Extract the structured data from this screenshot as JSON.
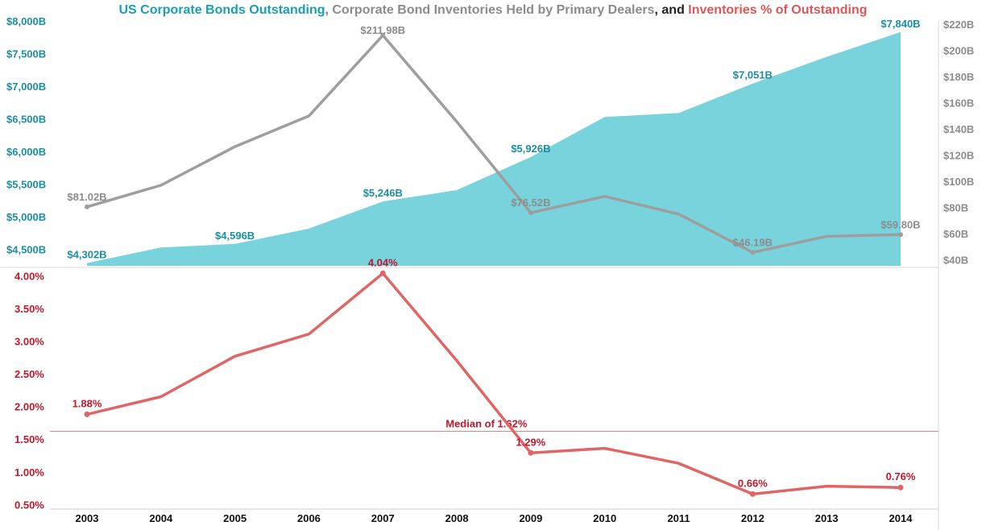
{
  "title": {
    "part1": "US Corporate Bonds Outstanding",
    "sep1": ", ",
    "part2": "Corporate Bond Inventories Held by Primary Dealers",
    "sep2": ", and ",
    "part3": "Inventories % of Outstanding"
  },
  "colors": {
    "outstanding": "#1a8fa3",
    "outstanding_fill": "#78d3dc",
    "inventories": "#9e9e9e",
    "pct": "#e06666",
    "pct_text": "#c0182b",
    "median": "#f08080"
  },
  "chart_data": [
    {
      "type": "area",
      "x": [
        "2003",
        "2004",
        "2005",
        "2006",
        "2007",
        "2008",
        "2009",
        "2010",
        "2011",
        "2012",
        "2013",
        "2014"
      ],
      "series": [
        {
          "name": "US Corporate Bonds Outstanding",
          "axis": "left",
          "values": [
            4302,
            4540,
            4596,
            4830,
            5246,
            5420,
            5926,
            6540,
            6600,
            7051,
            7460,
            7840
          ]
        },
        {
          "name": "Corporate Bond Inventories Held by Primary Dealers",
          "type": "line",
          "axis": "right",
          "values": [
            81.02,
            97.5,
            127,
            150.5,
            211.98,
            146,
            76.52,
            89,
            75.5,
            46.19,
            58.5,
            59.8
          ]
        }
      ],
      "left_ticks": [
        "$4,500B",
        "$5,000B",
        "$5,500B",
        "$6,000B",
        "$6,500B",
        "$7,000B",
        "$7,500B",
        "$8,000B"
      ],
      "left_tick_values": [
        4500,
        5000,
        5500,
        6000,
        6500,
        7000,
        7500,
        8000
      ],
      "right_ticks": [
        "$40B",
        "$60B",
        "$80B",
        "$100B",
        "$120B",
        "$140B",
        "$160B",
        "$180B",
        "$200B",
        "$220B"
      ],
      "right_tick_values": [
        40,
        60,
        80,
        100,
        120,
        140,
        160,
        180,
        200,
        220
      ],
      "left_ylim": [
        4260,
        8010
      ],
      "right_ylim": [
        36,
        223
      ],
      "area_labels": [
        {
          "i": 0,
          "text": "$4,302B"
        },
        {
          "i": 2,
          "text": "$4,596B"
        },
        {
          "i": 4,
          "text": "$5,246B"
        },
        {
          "i": 6,
          "text": "$5,926B"
        },
        {
          "i": 9,
          "text": "$7,051B"
        },
        {
          "i": 11,
          "text": "$7,840B"
        }
      ],
      "line_labels": [
        {
          "i": 0,
          "text": "$81.02B"
        },
        {
          "i": 4,
          "text": "$211.98B"
        },
        {
          "i": 6,
          "text": "$76.52B"
        },
        {
          "i": 9,
          "text": "$46.19B"
        },
        {
          "i": 11,
          "text": "$59.80B"
        }
      ]
    },
    {
      "type": "line",
      "x": [
        "2003",
        "2004",
        "2005",
        "2006",
        "2007",
        "2008",
        "2009",
        "2010",
        "2011",
        "2012",
        "2013",
        "2014"
      ],
      "series": [
        {
          "name": "Inventories % of Outstanding",
          "values": [
            1.88,
            2.15,
            2.77,
            3.11,
            4.04,
            2.7,
            1.29,
            1.36,
            1.13,
            0.66,
            0.78,
            0.76
          ]
        }
      ],
      "y_ticks": [
        "0.50%",
        "1.00%",
        "1.50%",
        "2.00%",
        "2.50%",
        "3.00%",
        "3.50%",
        "4.00%"
      ],
      "y_tick_values": [
        0.5,
        1.0,
        1.5,
        2.0,
        2.5,
        3.0,
        3.5,
        4.0
      ],
      "ylim": [
        0.43,
        4.13
      ],
      "median": {
        "value": 1.62,
        "label": "Median of 1.62%"
      },
      "labels": [
        {
          "i": 0,
          "text": "1.88%"
        },
        {
          "i": 4,
          "text": "4.04%"
        },
        {
          "i": 6,
          "text": "1.29%"
        },
        {
          "i": 9,
          "text": "0.66%"
        },
        {
          "i": 11,
          "text": "0.76%"
        }
      ]
    }
  ]
}
